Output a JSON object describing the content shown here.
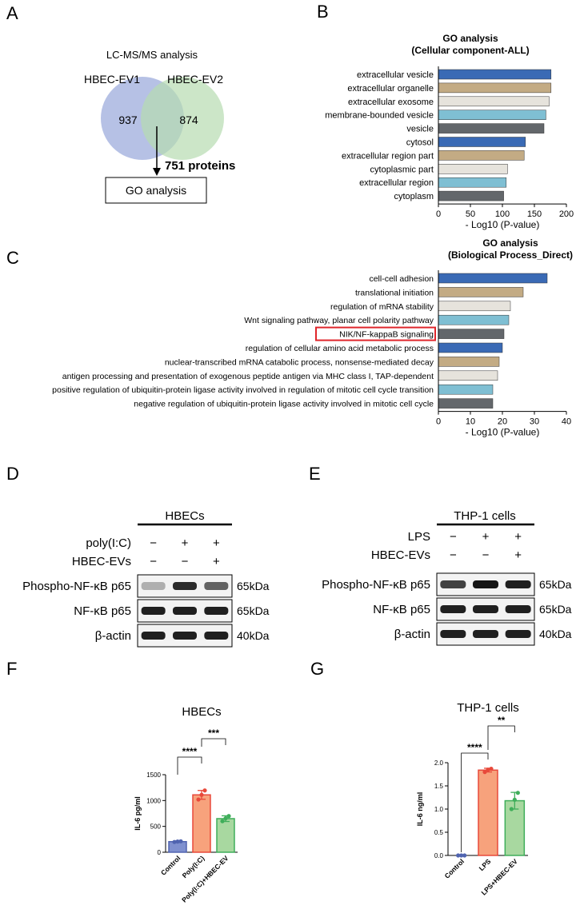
{
  "panels": {
    "A": {
      "letter": "A",
      "title": "LC-MS/MS analysis",
      "set1_label": "HBEC-EV1",
      "set2_label": "HBEC-EV2",
      "set1_count": "937",
      "set2_count": "874",
      "overlap_label": "751 proteins",
      "box_label": "GO analysis",
      "colors": {
        "set1": "#a9b6e0",
        "set2": "#b6dcb0",
        "overlap": "#8fb7a4"
      }
    },
    "B": {
      "letter": "B"
    },
    "C": {
      "letter": "C"
    },
    "D": {
      "letter": "D",
      "title": "HBECs",
      "treatments": [
        {
          "label": "poly(I:C)",
          "marks": [
            "−",
            "+",
            "+"
          ]
        },
        {
          "label": "HBEC-EVs",
          "marks": [
            "−",
            "−",
            "+"
          ]
        }
      ],
      "rows": [
        {
          "label": "Phospho-NF-κB p65",
          "size": "65kDa",
          "intensities": [
            0.25,
            0.85,
            0.6
          ]
        },
        {
          "label": "NF-κB p65",
          "size": "65kDa",
          "intensities": [
            0.9,
            0.9,
            0.9
          ]
        },
        {
          "label": "β-actin",
          "size": "40kDa",
          "intensities": [
            0.9,
            0.9,
            0.9
          ]
        }
      ]
    },
    "E": {
      "letter": "E",
      "title": "THP-1 cells",
      "treatments": [
        {
          "label": "LPS",
          "marks": [
            "−",
            "+",
            "+"
          ]
        },
        {
          "label": "HBEC-EVs",
          "marks": [
            "−",
            "−",
            "+"
          ]
        }
      ],
      "rows": [
        {
          "label": "Phospho-NF-κB p65",
          "size": "65kDa",
          "intensities": [
            0.75,
            0.95,
            0.9
          ]
        },
        {
          "label": "NF-κB p65",
          "size": "65kDa",
          "intensities": [
            0.9,
            0.9,
            0.9
          ]
        },
        {
          "label": "β-actin",
          "size": "40kDa",
          "intensities": [
            0.9,
            0.9,
            0.9
          ]
        }
      ]
    },
    "F": {
      "letter": "F"
    },
    "G": {
      "letter": "G"
    }
  },
  "chart_data": [
    {
      "id": "B",
      "type": "bar",
      "orientation": "horizontal",
      "title": "GO analysis\n(Cellular component-ALL)",
      "xlabel": "- Log10 (P-value)",
      "xlim": [
        0,
        200
      ],
      "xticks": [
        0,
        50,
        100,
        150,
        200
      ],
      "categories": [
        "extracellular vesicle",
        "extracellular organelle",
        "extracellular exosome",
        "membrane-bounded vesicle",
        "vesicle",
        "cytosol",
        "extracellular region part",
        "cytoplasmic part",
        "extracellular region",
        "cytoplasm"
      ],
      "values": [
        176,
        176,
        173,
        168,
        165,
        136,
        134,
        108,
        106,
        102
      ],
      "colors": [
        "#3a6ab5",
        "#c3ab84",
        "#e6e3dc",
        "#7fbfd3",
        "#63676b",
        "#3a6ab5",
        "#c3ab84",
        "#e6e3dc",
        "#7fbfd3",
        "#63676b"
      ]
    },
    {
      "id": "C",
      "type": "bar",
      "orientation": "horizontal",
      "title": "GO analysis\n(Biological Process_Direct)",
      "xlabel": "- Log10 (P-value)",
      "xlim": [
        0,
        40
      ],
      "xticks": [
        0,
        10,
        20,
        30,
        40
      ],
      "categories": [
        "cell-cell adhesion",
        "translational initiation",
        "regulation of mRNA stability",
        "Wnt signaling pathway, planar cell polarity pathway",
        "NIK/NF-kappaB signaling",
        "regulation of cellular amino acid metabolic process",
        "nuclear-transcribed mRNA catabolic process, nonsense-mediated decay",
        "antigen processing and presentation of exogenous peptide antigen via MHC class I, TAP-dependent",
        "positive regulation of ubiquitin-protein ligase activity involved in regulation of mitotic cell cycle transition",
        "negative regulation of ubiquitin-protein ligase activity involved in mitotic cell cycle"
      ],
      "values": [
        34,
        26.5,
        22.5,
        22,
        20.5,
        20,
        19,
        18.5,
        17,
        17
      ],
      "colors": [
        "#3a6ab5",
        "#c3ab84",
        "#e6e3dc",
        "#7fbfd3",
        "#63676b",
        "#3a6ab5",
        "#c3ab84",
        "#e6e3dc",
        "#7fbfd3",
        "#63676b"
      ],
      "highlight_index": 4,
      "highlight_color": "#e0262b"
    },
    {
      "id": "F",
      "type": "bar",
      "title": "HBECs",
      "ylabel": "IL-6 pg/ml",
      "ylim": [
        0,
        1500
      ],
      "yticks": [
        0,
        500,
        1000,
        1500
      ],
      "categories": [
        "Control",
        "Poly(I:C)",
        "Poly(I:C)+HBEC-EV"
      ],
      "values": [
        205,
        1110,
        650
      ],
      "errors": [
        15,
        85,
        55
      ],
      "points": [
        [
          198,
          207,
          212
        ],
        [
          1020,
          1110,
          1195
        ],
        [
          600,
          655,
          700
        ]
      ],
      "colors": [
        "#7f90cf",
        "#f7a27c",
        "#a8d8a0"
      ],
      "edge_colors": [
        "#5064b0",
        "#e8493a",
        "#3fae5a"
      ],
      "significance": [
        {
          "from": 0,
          "to": 1,
          "label": "****"
        },
        {
          "from": 1,
          "to": 2,
          "label": "***"
        }
      ]
    },
    {
      "id": "G",
      "type": "bar",
      "title": "THP-1 cells",
      "ylabel": "IL-6 ng/ml",
      "ylim": [
        0,
        2.0
      ],
      "yticks": [
        0.0,
        0.5,
        1.0,
        1.5,
        2.0
      ],
      "categories": [
        "Control",
        "LPS",
        "LPS+HBEC-EV"
      ],
      "values": [
        0.0,
        1.84,
        1.18
      ],
      "errors": [
        0.0,
        0.04,
        0.18
      ],
      "points": [
        [
          0.0,
          0.0,
          0.0
        ],
        [
          1.8,
          1.85,
          1.87
        ],
        [
          1.0,
          1.2,
          1.35
        ]
      ],
      "colors": [
        "#7f90cf",
        "#f7a27c",
        "#a8d8a0"
      ],
      "edge_colors": [
        "#5064b0",
        "#e8493a",
        "#3fae5a"
      ],
      "significance": [
        {
          "from": 0,
          "to": 1,
          "label": "****"
        },
        {
          "from": 1,
          "to": 2,
          "label": "**"
        }
      ]
    }
  ]
}
